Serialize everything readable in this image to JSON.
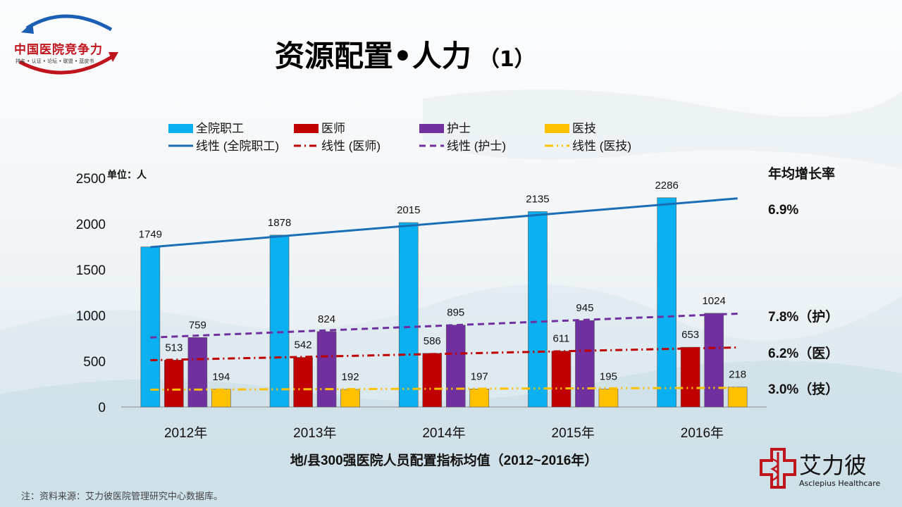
{
  "header": {
    "title": "资源配置•人力",
    "title_suffix": "（1）"
  },
  "logo_left": {
    "brand": "中国医院竞争力",
    "tagline": "排名 • 认证 • 论坛 • 联盟 • 蓝皮书"
  },
  "logo_right": {
    "name": "艾力彼",
    "english": "Asclepius Healthcare"
  },
  "footer_note": "注：资料来源：艾力彼医院管理研究中心数据库。",
  "chart_data": {
    "type": "bar",
    "title": "地/县300强医院人员配置指标均值（2012~2016年）",
    "unit_label": "单位：人",
    "categories": [
      "2012年",
      "2013年",
      "2014年",
      "2015年",
      "2016年"
    ],
    "ylim": [
      0,
      2500
    ],
    "yticks": [
      0,
      500,
      1000,
      1500,
      2000,
      2500
    ],
    "grid": false,
    "legend_position": "top",
    "series": [
      {
        "name": "全院职工",
        "values": [
          1749,
          1878,
          2015,
          2135,
          2286
        ],
        "color": "#0ab0ef",
        "trend_name": "线性 (全院职工)",
        "trend_color": "#1a6eb5",
        "trend_dash": "solid"
      },
      {
        "name": "医师",
        "values": [
          513,
          542,
          586,
          611,
          653
        ],
        "color": "#c00000",
        "trend_name": "线性 (医师)",
        "trend_color": "#c00000",
        "trend_dash": "dashdot"
      },
      {
        "name": "护士",
        "values": [
          759,
          824,
          895,
          945,
          1024
        ],
        "color": "#7030a0",
        "trend_name": "线性 (护士)",
        "trend_color": "#7030a0",
        "trend_dash": "dash"
      },
      {
        "name": "医技",
        "values": [
          194,
          192,
          197,
          195,
          218
        ],
        "color": "#ffc000",
        "trend_name": "线性 (医技)",
        "trend_color": "#ffc000",
        "trend_dash": "dashdotdot"
      }
    ],
    "growth_header": "年均增长率",
    "growth_rates": [
      {
        "series": "全院职工",
        "label": "6.9%"
      },
      {
        "series": "护士",
        "label": "7.8%（护）"
      },
      {
        "series": "医师",
        "label": "6.2%（医）"
      },
      {
        "series": "医技",
        "label": "3.0%（技）"
      }
    ]
  }
}
